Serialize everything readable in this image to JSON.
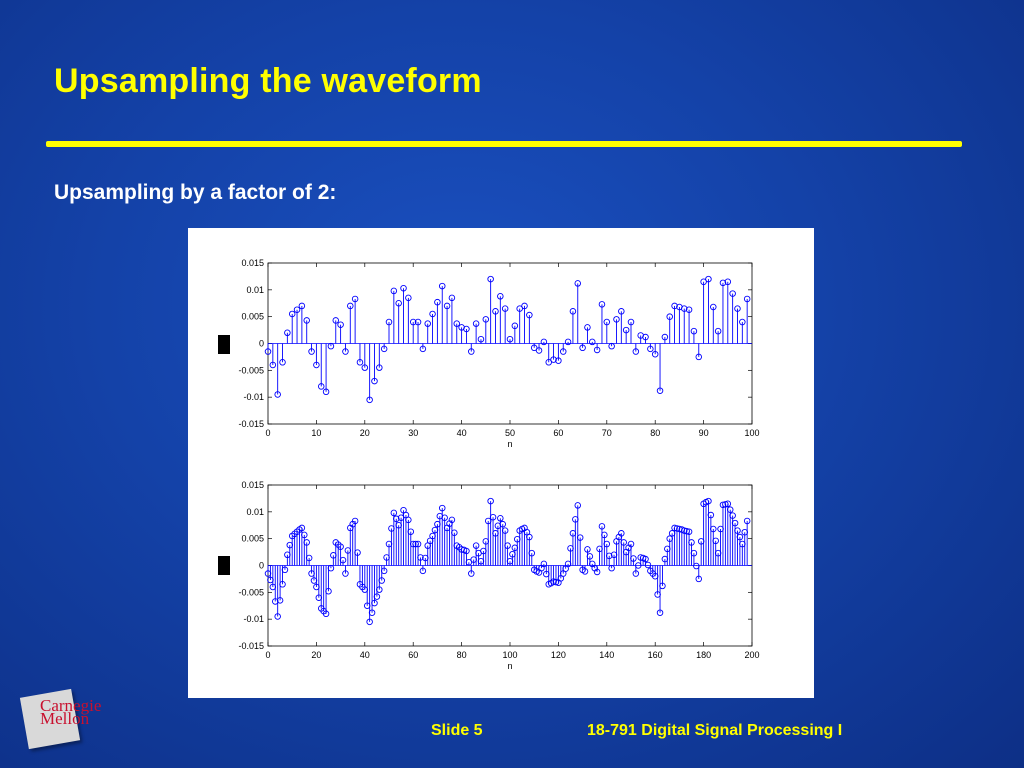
{
  "slide": {
    "title": "Upsampling the waveform",
    "subtitle": "Upsampling by a factor of 2:",
    "footer_slide": "Slide 5",
    "footer_course": "18-791 Digital Signal Processing I",
    "logo_line1": "Carnegie",
    "logo_line2": "Mellon",
    "colors": {
      "title": "#ffff00",
      "background": "#1442a8",
      "stem": "#0000ff"
    }
  },
  "chart_data": [
    {
      "type": "scatter",
      "style": "stem",
      "title": "",
      "xlabel": "n",
      "ylabel": "",
      "xlim": [
        0,
        100
      ],
      "ylim": [
        -0.015,
        0.015
      ],
      "xticks": [
        "0",
        "10",
        "20",
        "30",
        "40",
        "50",
        "60",
        "70",
        "80",
        "90",
        "100"
      ],
      "yticks": [
        "0.015",
        "0.01",
        "0.005",
        "0",
        "-0.005",
        "-0.01",
        "-0.015"
      ],
      "x": [
        0,
        1,
        2,
        3,
        4,
        5,
        6,
        7,
        8,
        9,
        10,
        11,
        12,
        13,
        14,
        15,
        16,
        17,
        18,
        19,
        20,
        21,
        22,
        23,
        24,
        25,
        26,
        27,
        28,
        29,
        30,
        31,
        32,
        33,
        34,
        35,
        36,
        37,
        38,
        39,
        40,
        41,
        42,
        43,
        44,
        45,
        46,
        47,
        48,
        49,
        50,
        51,
        52,
        53,
        54,
        55,
        56,
        57,
        58,
        59,
        60,
        61,
        62,
        63,
        64,
        65,
        66,
        67,
        68,
        69,
        70,
        71,
        72,
        73,
        74,
        75,
        76,
        77,
        78,
        79,
        80,
        81,
        82,
        83,
        84,
        85,
        86,
        87,
        88,
        89,
        90,
        91,
        92,
        93,
        94,
        95,
        96,
        97,
        98,
        99
      ],
      "values": [
        -0.0015,
        -0.004,
        -0.0095,
        -0.0035,
        0.002,
        0.0055,
        0.0063,
        0.007,
        0.0043,
        -0.0015,
        -0.004,
        -0.008,
        -0.009,
        -0.0005,
        0.0043,
        0.0035,
        -0.0015,
        0.007,
        0.0083,
        -0.0035,
        -0.0045,
        -0.0105,
        -0.007,
        -0.0045,
        -0.001,
        0.004,
        0.0098,
        0.0075,
        0.0103,
        0.0085,
        0.004,
        0.004,
        -0.001,
        0.0037,
        0.0055,
        0.0077,
        0.0107,
        0.007,
        0.0085,
        0.0037,
        0.003,
        0.0027,
        -0.0015,
        0.0037,
        0.0008,
        0.0045,
        0.012,
        0.006,
        0.0088,
        0.0065,
        0.0008,
        0.0033,
        0.0065,
        0.007,
        0.0053,
        -0.0008,
        -0.0013,
        0.0003,
        -0.0035,
        -0.003,
        -0.0032,
        -0.0015,
        0.0003,
        0.006,
        0.0112,
        -0.0008,
        0.003,
        0.0003,
        -0.0012,
        0.0073,
        0.004,
        -0.0005,
        0.0045,
        0.006,
        0.0025,
        0.004,
        -0.0015,
        0.0015,
        0.0012,
        -0.001,
        -0.002,
        -0.0088,
        0.0012,
        0.005,
        0.007,
        0.0068,
        0.0065,
        0.0063,
        0.0023,
        -0.0025,
        0.0115,
        0.012,
        0.0068,
        0.0023,
        0.0113,
        0.0115,
        0.0093,
        0.0065,
        0.004,
        0.0083
      ]
    },
    {
      "type": "scatter",
      "style": "stem",
      "title": "",
      "xlabel": "n",
      "ylabel": "",
      "xlim": [
        0,
        200
      ],
      "ylim": [
        -0.015,
        0.015
      ],
      "xticks": [
        "0",
        "20",
        "40",
        "60",
        "80",
        "100",
        "120",
        "140",
        "160",
        "180",
        "200"
      ],
      "yticks": [
        "0.015",
        "0.01",
        "0.005",
        "0",
        "-0.005",
        "-0.01",
        "-0.015"
      ],
      "x": [
        0,
        1,
        2,
        3,
        4,
        5,
        6,
        7,
        8,
        9,
        10,
        11,
        12,
        13,
        14,
        15,
        16,
        17,
        18,
        19,
        20,
        21,
        22,
        23,
        24,
        25,
        26,
        27,
        28,
        29,
        30,
        31,
        32,
        33,
        34,
        35,
        36,
        37,
        38,
        39,
        40,
        41,
        42,
        43,
        44,
        45,
        46,
        47,
        48,
        49,
        50,
        51,
        52,
        53,
        54,
        55,
        56,
        57,
        58,
        59,
        60,
        61,
        62,
        63,
        64,
        65,
        66,
        67,
        68,
        69,
        70,
        71,
        72,
        73,
        74,
        75,
        76,
        77,
        78,
        79,
        80,
        81,
        82,
        83,
        84,
        85,
        86,
        87,
        88,
        89,
        90,
        91,
        92,
        93,
        94,
        95,
        96,
        97,
        98,
        99,
        100,
        101,
        102,
        103,
        104,
        105,
        106,
        107,
        108,
        109,
        110,
        111,
        112,
        113,
        114,
        115,
        116,
        117,
        118,
        119,
        120,
        121,
        122,
        123,
        124,
        125,
        126,
        127,
        128,
        129,
        130,
        131,
        132,
        133,
        134,
        135,
        136,
        137,
        138,
        139,
        140,
        141,
        142,
        143,
        144,
        145,
        146,
        147,
        148,
        149,
        150,
        151,
        152,
        153,
        154,
        155,
        156,
        157,
        158,
        159,
        160,
        161,
        162,
        163,
        164,
        165,
        166,
        167,
        168,
        169,
        170,
        171,
        172,
        173,
        174,
        175,
        176,
        177,
        178,
        179,
        180,
        181,
        182,
        183,
        184,
        185,
        186,
        187,
        188,
        189,
        190,
        191,
        192,
        193,
        194,
        195,
        196,
        197,
        198
      ],
      "values": [
        -0.0015,
        -0.0027,
        -0.004,
        -0.0067,
        -0.0095,
        -0.0065,
        -0.0035,
        -0.0008,
        0.002,
        0.0038,
        0.0055,
        0.0059,
        0.0063,
        0.0067,
        0.007,
        0.0057,
        0.0043,
        0.0014,
        -0.0015,
        -0.0028,
        -0.004,
        -0.006,
        -0.008,
        -0.0085,
        -0.009,
        -0.0048,
        -0.0005,
        0.0019,
        0.0043,
        0.0039,
        0.0035,
        0.001,
        -0.0015,
        0.0028,
        0.007,
        0.0077,
        0.0083,
        0.0024,
        -0.0035,
        -0.004,
        -0.0045,
        -0.0075,
        -0.0105,
        -0.0088,
        -0.007,
        -0.0058,
        -0.0045,
        -0.0028,
        -0.001,
        0.0015,
        0.004,
        0.0069,
        0.0098,
        0.0087,
        0.0075,
        0.0089,
        0.0103,
        0.0094,
        0.0085,
        0.0063,
        0.004,
        0.004,
        0.004,
        0.0015,
        -0.001,
        0.0014,
        0.0037,
        0.0046,
        0.0055,
        0.0066,
        0.0077,
        0.0092,
        0.0107,
        0.0089,
        0.007,
        0.0078,
        0.0085,
        0.0061,
        0.0037,
        0.0034,
        0.003,
        0.0029,
        0.0027,
        0.0006,
        -0.0015,
        0.0011,
        0.0037,
        0.0023,
        0.0008,
        0.0027,
        0.0045,
        0.0083,
        0.012,
        0.009,
        0.006,
        0.0074,
        0.0088,
        0.0077,
        0.0065,
        0.0037,
        0.0008,
        0.0021,
        0.0033,
        0.0049,
        0.0065,
        0.0068,
        0.007,
        0.0062,
        0.0053,
        0.0023,
        -0.0008,
        -0.0011,
        -0.0013,
        -0.0005,
        0.0003,
        -0.0016,
        -0.0035,
        -0.0033,
        -0.003,
        -0.0031,
        -0.0032,
        -0.0024,
        -0.0015,
        -0.0006,
        0.0003,
        0.0032,
        0.006,
        0.0086,
        0.0112,
        0.0052,
        -0.0008,
        -0.0011,
        0.003,
        0.0017,
        0.0003,
        -0.0005,
        -0.0012,
        0.0031,
        0.0073,
        0.0057,
        0.004,
        0.0018,
        -0.0005,
        0.002,
        0.0045,
        0.0053,
        0.006,
        0.0043,
        0.0025,
        0.0033,
        0.004,
        0.0013,
        -0.0015,
        0,
        0.0015,
        0.0014,
        0.0012,
        0.0001,
        -0.001,
        -0.0015,
        -0.002,
        -0.0054,
        -0.0088,
        -0.0038,
        0.0012,
        0.0031,
        0.005,
        0.006,
        0.007,
        0.0069,
        0.0068,
        0.0067,
        0.0065,
        0.0064,
        0.0063,
        0.0043,
        0.0023,
        -0.0001,
        -0.0025,
        0.0045,
        0.0115,
        0.0118,
        0.012,
        0.0094,
        0.0068,
        0.0046,
        0.0023,
        0.0068,
        0.0113,
        0.0114,
        0.0115,
        0.0104,
        0.0093,
        0.0079,
        0.0065,
        0.0053,
        0.004,
        0.0062,
        0.0083
      ]
    }
  ]
}
